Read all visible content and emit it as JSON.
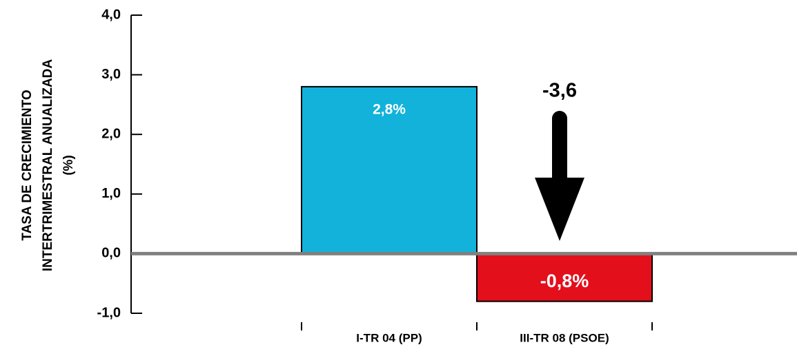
{
  "chart_data": {
    "type": "bar",
    "y_label": [
      "TASA DE CRECIMIENTO",
      "INTERTRIMESTRAL ANUALIZADA",
      "(%)"
    ],
    "categories": [
      "I-TR 04 (PP)",
      "III-TR 08 (PSOE)"
    ],
    "values": [
      2.8,
      -0.8
    ],
    "value_labels": [
      "2,8%",
      "-0,8%"
    ],
    "colors": [
      "#12b2da",
      "#e30f1b"
    ],
    "annotation": "-3,6",
    "ylim": [
      -1,
      4
    ],
    "yticks": [
      {
        "value": -1,
        "label": "-1,0"
      },
      {
        "value": 0,
        "label": "0,0"
      },
      {
        "value": 1,
        "label": "1,0"
      },
      {
        "value": 2,
        "label": "2,0"
      },
      {
        "value": 3,
        "label": "3,0"
      },
      {
        "value": 4,
        "label": "4,0"
      }
    ]
  }
}
